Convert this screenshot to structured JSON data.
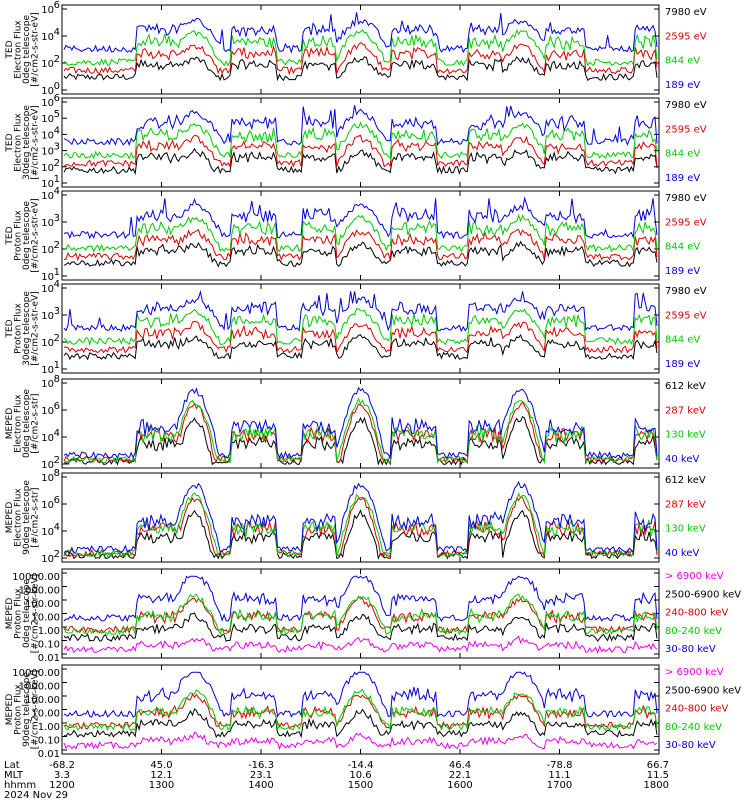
{
  "chart_data": {
    "type": "line",
    "date_label": "2024 Nov 29",
    "x_axis": {
      "row_labels": [
        "Lat",
        "MLT",
        "hhmm"
      ],
      "ticks": [
        {
          "lat": "-68.2",
          "mlt": "3.3",
          "hhmm": "1200"
        },
        {
          "lat": "45.0",
          "mlt": "12.1",
          "hhmm": "1300"
        },
        {
          "lat": "-16.3",
          "mlt": "23.1",
          "hhmm": "1400"
        },
        {
          "lat": "-14.4",
          "mlt": "10.6",
          "hhmm": "1500"
        },
        {
          "lat": "46.4",
          "mlt": "22.1",
          "hhmm": "1600"
        },
        {
          "lat": "-78.8",
          "mlt": "11.1",
          "hhmm": "1700"
        },
        {
          "lat": "66.7",
          "mlt": "11.5",
          "hhmm": "1800"
        }
      ]
    },
    "panels": [
      {
        "ylabel": [
          "TED",
          "Electron Flux",
          "0deg telescope",
          "[#/cm2-s-str-eV]"
        ],
        "yticks": [
          "10^6",
          "10^4",
          "10^2",
          "10^0"
        ],
        "legend": [
          {
            "text": "7980 eV",
            "color": "#000000"
          },
          {
            "text": "2595 eV",
            "color": "#dd0000"
          },
          {
            "text": "844 eV",
            "color": "#00cc00"
          },
          {
            "text": "189 eV",
            "color": "#0000dd"
          }
        ]
      },
      {
        "ylabel": [
          "TED",
          "Electron Flux",
          "30deg telescope",
          "[#/cm2-s-str-eV]"
        ],
        "yticks": [
          "10^6",
          "10^5",
          "10^4",
          "10^3",
          "10^2",
          "10^1"
        ],
        "legend": [
          {
            "text": "7980 eV",
            "color": "#000000"
          },
          {
            "text": "2595 eV",
            "color": "#dd0000"
          },
          {
            "text": "844 eV",
            "color": "#00cc00"
          },
          {
            "text": "189 eV",
            "color": "#0000dd"
          }
        ]
      },
      {
        "ylabel": [
          "TED",
          "Proton Flux",
          "0deg telescope",
          "[#/cm2-s-str-eV]"
        ],
        "yticks": [
          "10^4",
          "10^3",
          "10^2",
          "10^1"
        ],
        "legend": [
          {
            "text": "7980 eV",
            "color": "#000000"
          },
          {
            "text": "2595 eV",
            "color": "#dd0000"
          },
          {
            "text": "844 eV",
            "color": "#00cc00"
          },
          {
            "text": "189 eV",
            "color": "#0000dd"
          }
        ]
      },
      {
        "ylabel": [
          "TED",
          "Proton Flux",
          "30deg telescope",
          "[#/cm2-s-str-eV]"
        ],
        "yticks": [
          "10^4",
          "10^3",
          "10^2",
          "10^1"
        ],
        "legend": [
          {
            "text": "7980 eV",
            "color": "#000000"
          },
          {
            "text": "2595 eV",
            "color": "#dd0000"
          },
          {
            "text": "844 eV",
            "color": "#00cc00"
          },
          {
            "text": "189 eV",
            "color": "#0000dd"
          }
        ]
      },
      {
        "ylabel": [
          "MEPED",
          "Electron Flux",
          "0deg telescope",
          "[#/cm2-s-str]"
        ],
        "yticks": [
          "10^8",
          "10^6",
          "10^4",
          "10^2"
        ],
        "legend": [
          {
            "text": "612 keV",
            "color": "#000000"
          },
          {
            "text": "287 keV",
            "color": "#dd0000"
          },
          {
            "text": "130 keV",
            "color": "#00cc00"
          },
          {
            "text": "40 keV",
            "color": "#0000dd"
          }
        ]
      },
      {
        "ylabel": [
          "MEPED",
          "Electron Flux",
          "90deg telescope",
          "[#/cm2-s-str]"
        ],
        "yticks": [
          "10^8",
          "10^6",
          "10^4",
          "10^2"
        ],
        "legend": [
          {
            "text": "612 keV",
            "color": "#000000"
          },
          {
            "text": "287 keV",
            "color": "#dd0000"
          },
          {
            "text": "130 keV",
            "color": "#00cc00"
          },
          {
            "text": "40 keV",
            "color": "#0000dd"
          }
        ]
      },
      {
        "ylabel": [
          "MEPED",
          "Proton Flux",
          "0deg telescope",
          "[#/cm2-s-str-keV]"
        ],
        "yticks": [
          "10000.00",
          "1000.00",
          "100.00",
          "10.00",
          "1.00",
          "0.10",
          "0.01"
        ],
        "legend": [
          {
            "text": "> 6900 keV",
            "color": "#ee00ee"
          },
          {
            "text": "2500-6900 keV",
            "color": "#000000"
          },
          {
            "text": "240-800 keV",
            "color": "#dd0000"
          },
          {
            "text": "80-240 keV",
            "color": "#00cc00"
          },
          {
            "text": "30-80 keV",
            "color": "#0000dd"
          }
        ]
      },
      {
        "ylabel": [
          "MEPED",
          "Proton Flux",
          "90deg telescope",
          "[#/cm2-s-str-keV]"
        ],
        "yticks": [
          "10000.00",
          "1000.00",
          "100.00",
          "10.00",
          "1.00",
          "0.10",
          "0.01"
        ],
        "legend": [
          {
            "text": "> 6900 keV",
            "color": "#ee00ee"
          },
          {
            "text": "2500-6900 keV",
            "color": "#000000"
          },
          {
            "text": "240-800 keV",
            "color": "#dd0000"
          },
          {
            "text": "80-240 keV",
            "color": "#00cc00"
          },
          {
            "text": "30-80 keV",
            "color": "#0000dd"
          }
        ]
      }
    ],
    "series_colors": {
      "black": "#000000",
      "red": "#dd0000",
      "green": "#00cc00",
      "blue": "#0000dd",
      "magenta": "#ee00ee"
    }
  }
}
